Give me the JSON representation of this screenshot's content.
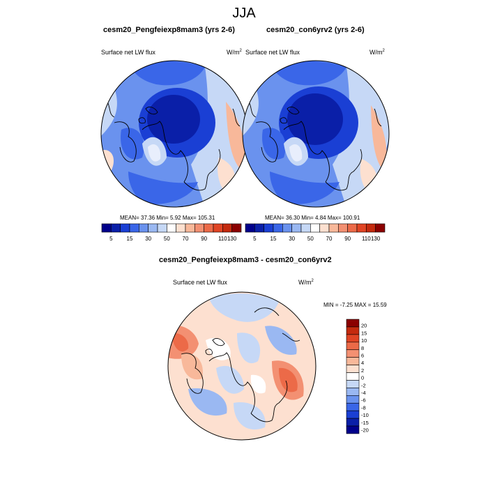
{
  "page_title": "JJA",
  "top_left": {
    "title": "cesm20_Pengfeiexp8mam3 (yrs 2-6)",
    "field_label": "Surface net LW flux",
    "units": "W/m",
    "units_sup": "2",
    "stats": "MEAN=  37.36  Min=   5.92  Max= 105.31"
  },
  "top_right": {
    "title": "cesm20_con6yrv2 (yrs 2-6)",
    "field_label": "Surface net LW flux",
    "units": "W/m",
    "units_sup": "2",
    "stats": "MEAN=  36.30  Min=   4.84  Max= 100.91"
  },
  "top_colorbar": {
    "tick_labels": [
      "5",
      "15",
      "30",
      "50",
      "70",
      "90",
      "110",
      "130"
    ],
    "colors": [
      "#00008b",
      "#0a1fa8",
      "#1a3fd4",
      "#3a66e8",
      "#6a92ee",
      "#9ab8f2",
      "#c6d8f6",
      "#ffffff",
      "#fde0d0",
      "#f8b89a",
      "#f39072",
      "#ec6a48",
      "#e04424",
      "#c42a0e",
      "#8b0000"
    ]
  },
  "diff": {
    "title": "cesm20_Pengfeiexp8mam3 - cesm20_con6yrv2",
    "field_label": "Surface net LW flux",
    "units": "W/m",
    "units_sup": "2",
    "stats": "MIN =  -7.25 MAX =  15.59"
  },
  "diff_colorbar": {
    "tick_labels": [
      "20",
      "15",
      "10",
      "8",
      "6",
      "4",
      "2",
      "0",
      "-2",
      "-4",
      "-6",
      "-8",
      "-10",
      "-15",
      "-20"
    ],
    "colors": [
      "#8b0000",
      "#c42a0e",
      "#e04424",
      "#ec6a48",
      "#f39072",
      "#f8b89a",
      "#fde0d0",
      "#ffffff",
      "#c6d8f6",
      "#9ab8f2",
      "#6a92ee",
      "#3a66e8",
      "#1a3fd4",
      "#0a1fa8",
      "#00008b"
    ]
  }
}
